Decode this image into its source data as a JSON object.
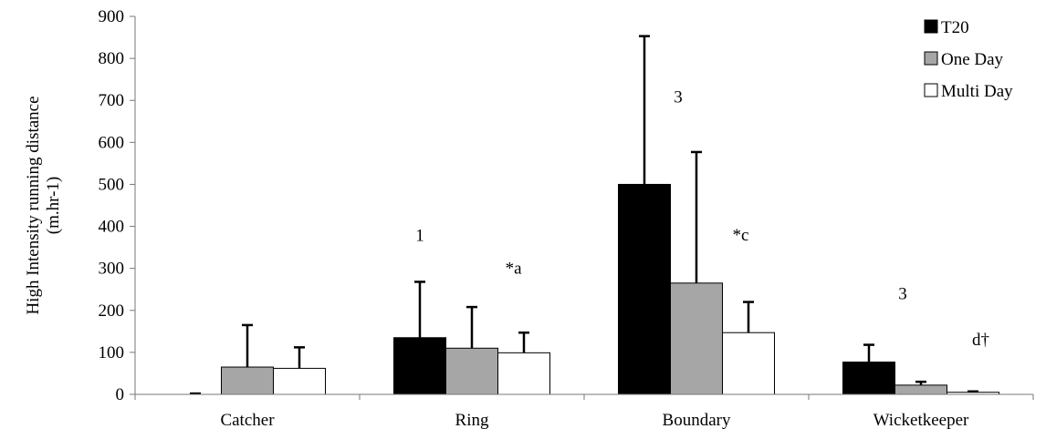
{
  "chart_data": {
    "type": "bar",
    "title": "",
    "ylabel": [
      "High Intensity running distance",
      "(m.hr-1)"
    ],
    "xlabel": "",
    "ylim": [
      0,
      900
    ],
    "yticks": [
      0,
      100,
      200,
      300,
      400,
      500,
      600,
      700,
      800,
      900
    ],
    "grid": false,
    "legend_position": "top-right",
    "categories": [
      "Catcher",
      "Ring",
      "Boundary",
      "Wicketkeeper"
    ],
    "series": [
      {
        "name": "T20",
        "color": "#000000",
        "values": [
          0,
          135,
          500,
          77
        ],
        "error_upper": [
          2,
          268,
          853,
          118
        ]
      },
      {
        "name": "One Day",
        "color": "#a6a6a6",
        "values": [
          65,
          110,
          265,
          22
        ],
        "error_upper": [
          165,
          208,
          577,
          30
        ]
      },
      {
        "name": "Multi Day",
        "color": "#ffffff",
        "values": [
          62,
          99,
          147,
          5
        ],
        "error_upper": [
          112,
          147,
          220,
          7
        ]
      }
    ],
    "annotations": [
      {
        "text": "1",
        "category": "Ring",
        "y": 378
      },
      {
        "text": "*a",
        "category": "Ring",
        "y": 300
      },
      {
        "text": "3",
        "category": "Boundary",
        "y": 708
      },
      {
        "text": "*c",
        "category": "Boundary",
        "y": 380
      },
      {
        "text": "3",
        "category": "Wicketkeeper",
        "y": 240
      },
      {
        "text": "d†",
        "category": "Wicketkeeper",
        "y": 130
      }
    ]
  }
}
